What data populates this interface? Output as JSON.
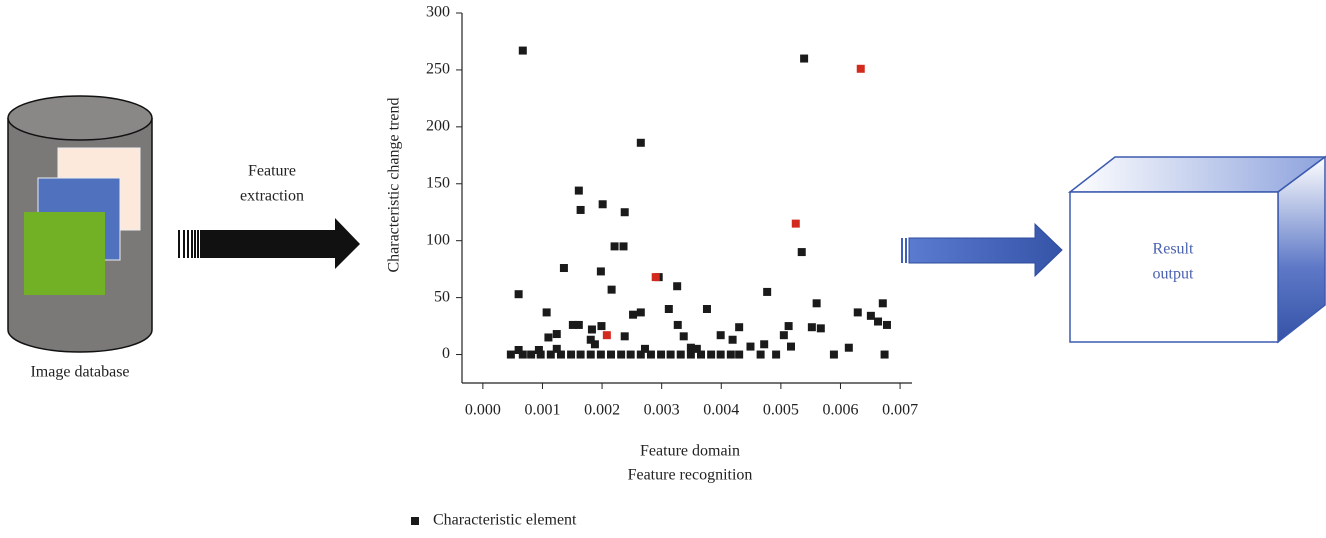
{
  "image_database": {
    "label": "Image database"
  },
  "feature_extraction": {
    "label": [
      "Feature",
      "extraction"
    ]
  },
  "result_output": {
    "label": [
      "Result",
      "output"
    ]
  },
  "chart_data": {
    "type": "scatter",
    "ylabel": "Characteristic change trend",
    "xlabel": [
      "Feature domain",
      "Feature recognition"
    ],
    "xlim": [
      -0.00035,
      0.0072
    ],
    "ylim": [
      -25,
      300
    ],
    "xticks": [
      {
        "value": 0,
        "label": "0.000"
      },
      {
        "value": 0.001,
        "label": "0.001"
      },
      {
        "value": 0.002,
        "label": "0.002"
      },
      {
        "value": 0.003,
        "label": "0.003"
      },
      {
        "value": 0.004,
        "label": "0.004"
      },
      {
        "value": 0.005,
        "label": "0.005"
      },
      {
        "value": 0.006,
        "label": "0.006"
      },
      {
        "value": 0.007,
        "label": "0.007"
      }
    ],
    "yticks": [
      0,
      50,
      100,
      150,
      200,
      250,
      300
    ],
    "legend": "bottom",
    "series": [
      {
        "name": "Characteristic element",
        "color": "#1a1a1a",
        "x": [
          0.00067,
          0.00539,
          0.00265,
          0.00161,
          0.00201,
          0.00164,
          0.00238,
          0.00221,
          0.00236,
          0.00535,
          0.00136,
          0.00198,
          0.00295,
          0.00326,
          0.00216,
          0.00477,
          0.0006,
          0.0056,
          0.00671,
          0.00312,
          0.00376,
          0.00107,
          0.00265,
          0.00252,
          0.00629,
          0.00651,
          0.00663,
          0.00678,
          0.00552,
          0.00567,
          0.00513,
          0.0043,
          0.00151,
          0.00161,
          0.00327,
          0.00183,
          0.00199,
          0.00124,
          0.00399,
          0.00419,
          0.00505,
          0.00238,
          0.00337,
          0.0011,
          0.00181,
          0.00188,
          0.00449,
          0.00472,
          0.00517,
          0.00614,
          0.0006,
          0.00094,
          0.00349,
          0.00272,
          0.00124,
          0.00359,
          0.00047,
          0.00067,
          0.00081,
          0.00097,
          0.00114,
          0.00131,
          0.00148,
          0.00164,
          0.00181,
          0.00198,
          0.00215,
          0.00232,
          0.00248,
          0.00265,
          0.00282,
          0.00299,
          0.00315,
          0.00332,
          0.00349,
          0.00366,
          0.00383,
          0.00399,
          0.00416,
          0.0043,
          0.00466,
          0.00492,
          0.00589,
          0.00674
        ],
        "values": [
          267,
          260,
          186,
          144,
          132,
          127,
          125,
          95,
          95,
          90,
          76,
          73,
          68,
          60,
          57,
          55,
          53,
          45,
          45,
          40,
          40,
          37,
          37,
          35,
          37,
          34,
          29,
          26,
          24,
          23,
          25,
          24,
          26,
          26,
          26,
          22,
          25,
          18,
          17,
          13,
          17,
          16,
          16,
          15,
          13,
          9,
          7,
          9,
          7,
          6,
          4,
          4,
          6,
          5,
          5,
          5,
          0,
          0,
          0,
          0,
          0,
          0,
          0,
          0,
          0,
          0,
          0,
          0,
          0,
          0,
          0,
          0,
          0,
          0,
          0,
          0,
          0,
          0,
          0,
          0,
          0,
          0,
          0,
          0
        ]
      },
      {
        "color": "#d42a1e",
        "x": [
          0.00208,
          0.0029,
          0.00525,
          0.00634
        ],
        "values": [
          17,
          68,
          115,
          251
        ]
      }
    ]
  }
}
